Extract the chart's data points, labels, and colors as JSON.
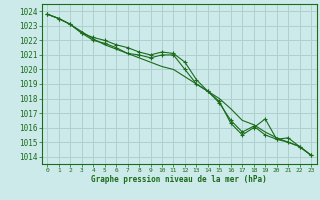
{
  "title": "Graphe pression niveau de la mer (hPa)",
  "background_color": "#cdeaea",
  "grid_color": "#b0d0d0",
  "line_color": "#1a6b1a",
  "xlim": [
    -0.5,
    23.5
  ],
  "ylim": [
    1013.5,
    1024.5
  ],
  "yticks": [
    1014,
    1015,
    1016,
    1017,
    1018,
    1019,
    1020,
    1021,
    1022,
    1023,
    1024
  ],
  "xticks": [
    0,
    1,
    2,
    3,
    4,
    5,
    6,
    7,
    8,
    9,
    10,
    11,
    12,
    13,
    14,
    15,
    16,
    17,
    18,
    19,
    20,
    21,
    22,
    23
  ],
  "line1_x": [
    0,
    1,
    2,
    3,
    4,
    5,
    6,
    7,
    8,
    9,
    10,
    11,
    12,
    13,
    14,
    15,
    16,
    17,
    18,
    19,
    20,
    21,
    22,
    23
  ],
  "line1_y": [
    1023.8,
    1023.5,
    1023.1,
    1022.5,
    1022.2,
    1022.0,
    1021.7,
    1021.5,
    1021.2,
    1021.0,
    1021.2,
    1021.1,
    1020.5,
    1019.3,
    1018.5,
    1017.7,
    1016.5,
    1015.7,
    1016.1,
    1015.5,
    1015.2,
    1015.0,
    1014.7,
    1014.1
  ],
  "line2_x": [
    0,
    1,
    2,
    3,
    4,
    5,
    6,
    7,
    8,
    9,
    10,
    11,
    12,
    13,
    14,
    15,
    16,
    17,
    18,
    19,
    20,
    21,
    22,
    23
  ],
  "line2_y": [
    1023.8,
    1023.5,
    1023.1,
    1022.5,
    1022.0,
    1021.8,
    1021.5,
    1021.1,
    1021.0,
    1020.8,
    1021.0,
    1021.0,
    1020.0,
    1019.0,
    1018.5,
    1017.8,
    1016.3,
    1015.5,
    1016.0,
    1016.6,
    1015.2,
    1015.3,
    1014.7,
    1014.1
  ],
  "line3_x": [
    0,
    1,
    2,
    3,
    4,
    5,
    6,
    7,
    8,
    9,
    10,
    11,
    12,
    13,
    14,
    15,
    16,
    17,
    18,
    19,
    20,
    21,
    22,
    23
  ],
  "line3_y": [
    1023.8,
    1023.5,
    1023.1,
    1022.6,
    1022.1,
    1021.7,
    1021.4,
    1021.1,
    1020.8,
    1020.5,
    1020.2,
    1020.0,
    1019.5,
    1019.0,
    1018.5,
    1018.0,
    1017.3,
    1016.5,
    1016.2,
    1015.7,
    1015.3,
    1015.0,
    1014.7,
    1014.1
  ]
}
